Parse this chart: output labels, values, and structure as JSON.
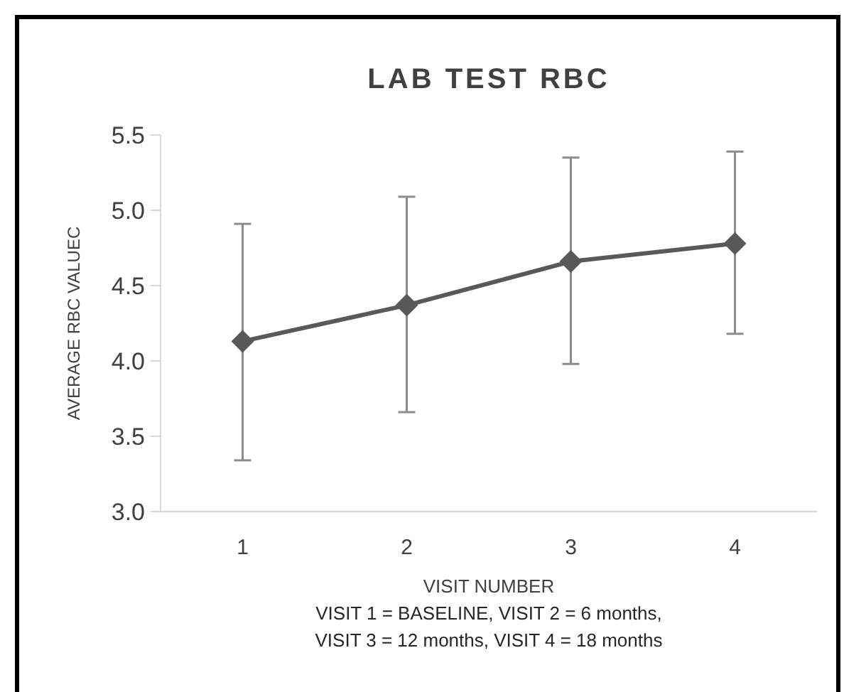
{
  "chart_data": {
    "type": "line",
    "title": "LAB TEST RBC",
    "xlabel": "VISIT NUMBER",
    "ylabel": "AVERAGE RBC VALUEC",
    "categories": [
      "1",
      "2",
      "3",
      "4"
    ],
    "series": [
      {
        "color": "#595959",
        "values": [
          4.13,
          4.37,
          4.66,
          4.78
        ],
        "errors": [
          [
            3.34,
            4.91
          ],
          [
            3.66,
            5.09
          ],
          [
            3.98,
            5.35
          ],
          [
            4.18,
            5.39
          ]
        ]
      }
    ],
    "ylim": [
      3.0,
      5.5
    ],
    "yticks": [
      {
        "value": 3,
        "label": "3.0"
      },
      {
        "value": 3.5,
        "label": "3.5"
      },
      {
        "value": 4,
        "label": "4.0"
      },
      {
        "value": 4.5,
        "label": "4.5"
      },
      {
        "value": 5,
        "label": "5.0"
      },
      {
        "value": 5.5,
        "label": "5.5"
      }
    ],
    "grid": false,
    "marker": "diamond",
    "line_style": "solid",
    "annotations": [
      "VISIT 1 = BASELINE, VISIT 2 = 6 months,",
      "VISIT 3 = 12 months, VISIT 4 = 18 months"
    ]
  }
}
